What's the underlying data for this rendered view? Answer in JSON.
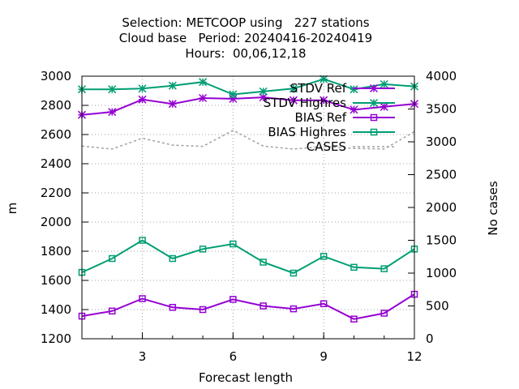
{
  "chart_data": {
    "type": "line",
    "title_lines": [
      "Selection: METCOOP using   227 stations",
      "Cloud base   Period: 20240416-20240419",
      "Hours:  00,06,12,18"
    ],
    "xlabel": "Forecast length",
    "ylabel": "m",
    "y2label": "No cases",
    "x": [
      1,
      2,
      3,
      4,
      5,
      6,
      7,
      8,
      9,
      10,
      11,
      12
    ],
    "xlim": [
      1,
      12
    ],
    "xticks": [
      3,
      6,
      9,
      12
    ],
    "ylim": [
      1200,
      3000
    ],
    "yticks": [
      1200,
      1400,
      1600,
      1800,
      2000,
      2200,
      2400,
      2600,
      2800,
      3000
    ],
    "y2lim": [
      0,
      4000
    ],
    "y2ticks": [
      0,
      500,
      1000,
      1500,
      2000,
      2500,
      3000,
      3500,
      4000
    ],
    "grid": true,
    "legend_position": "top-right",
    "series": [
      {
        "name": "STDV Ref",
        "axis": "left",
        "color": "#9400d3",
        "marker": "star",
        "values": [
          2735,
          2755,
          2840,
          2810,
          2850,
          2845,
          2855,
          2835,
          2835,
          2770,
          2790,
          2810
        ]
      },
      {
        "name": "STDV Highres",
        "axis": "left",
        "color": "#009e73",
        "marker": "star",
        "values": [
          2910,
          2910,
          2915,
          2935,
          2960,
          2875,
          2895,
          2915,
          2980,
          2910,
          2945,
          2930
        ]
      },
      {
        "name": "BIAS Ref",
        "axis": "left",
        "color": "#9400d3",
        "marker": "square",
        "values": [
          1355,
          1390,
          1475,
          1415,
          1400,
          1470,
          1425,
          1405,
          1440,
          1335,
          1375,
          1505
        ]
      },
      {
        "name": "BIAS Highres",
        "axis": "left",
        "color": "#009e73",
        "marker": "square",
        "values": [
          1655,
          1750,
          1875,
          1750,
          1815,
          1850,
          1725,
          1650,
          1765,
          1690,
          1680,
          1815
        ]
      },
      {
        "name": "CASES",
        "axis": "right",
        "color": "#a0a0a0",
        "marker": "none",
        "dashed": true,
        "values": [
          2935,
          2890,
          3055,
          2950,
          2930,
          3175,
          2935,
          2890,
          2930,
          2900,
          2890,
          3155
        ]
      }
    ]
  }
}
